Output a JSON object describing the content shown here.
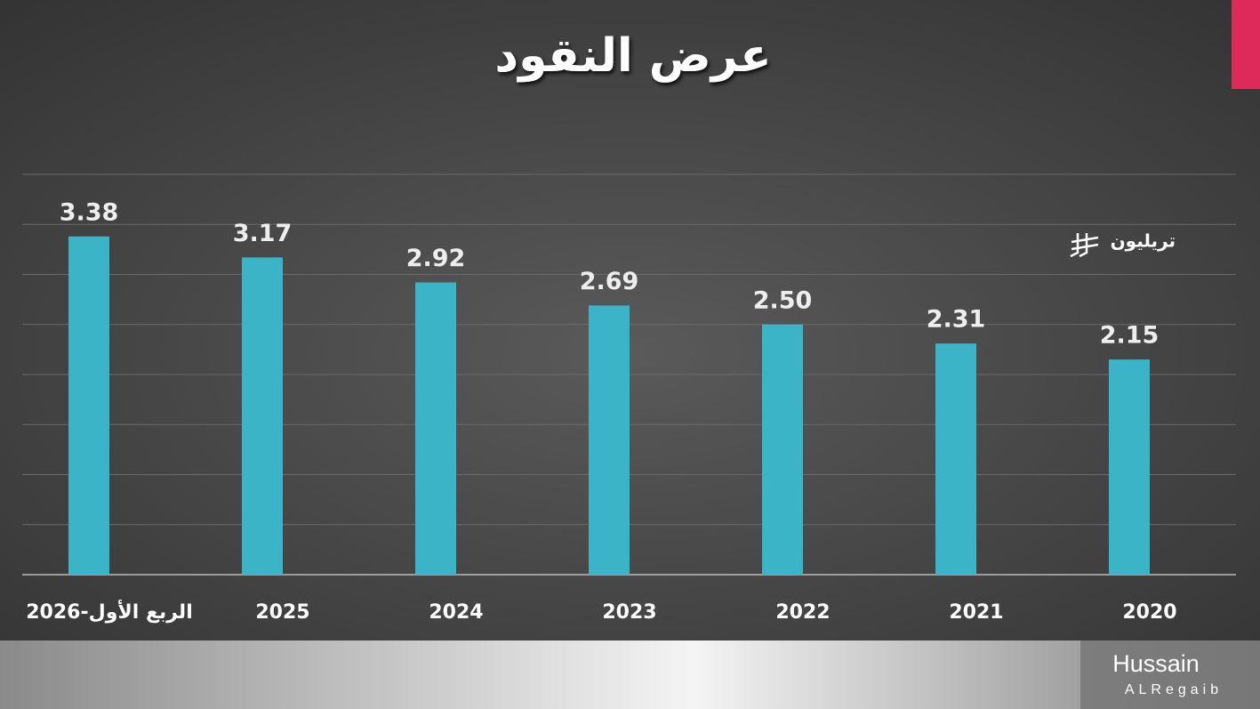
{
  "chart_data": {
    "type": "bar",
    "title": "عرض النقود",
    "unit": "تريليون",
    "categories": [
      "الربع الأول-2026",
      "2025",
      "2024",
      "2023",
      "2022",
      "2021",
      "2020"
    ],
    "values": [
      3.38,
      3.17,
      2.92,
      2.69,
      2.5,
      2.31,
      2.15
    ],
    "value_labels": [
      "3.38",
      "3.17",
      "2.92",
      "2.69",
      "2.50",
      "2.31",
      "2.15"
    ],
    "color": "#3bb4c7",
    "ylim": [
      0,
      4
    ],
    "yticks": [
      0,
      0.5,
      1,
      1.5,
      2,
      2.5,
      3,
      3.5,
      4
    ],
    "grid": true
  },
  "branding": {
    "name": "Hussain",
    "surname": "ALRegaib"
  }
}
